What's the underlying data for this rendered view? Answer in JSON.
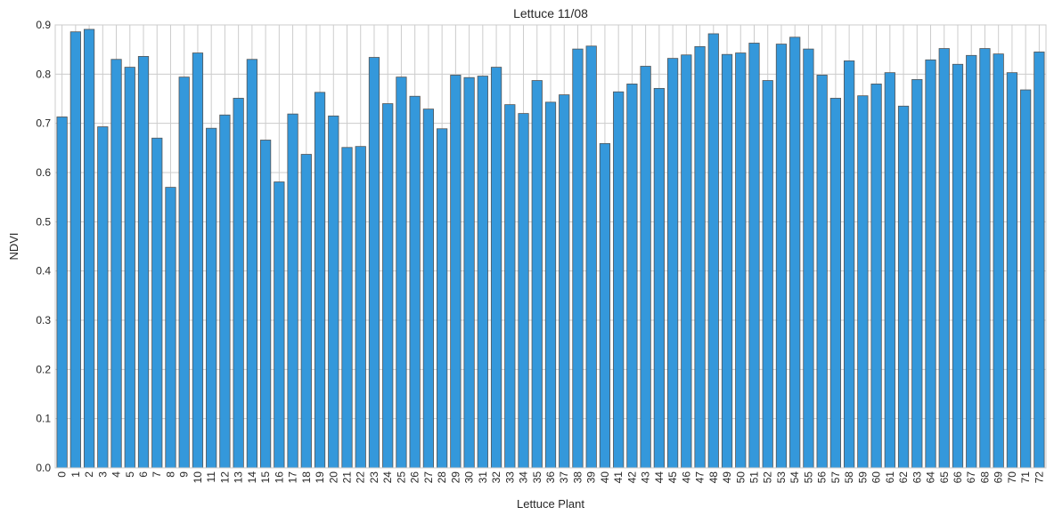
{
  "chart_data": {
    "type": "bar",
    "title": "Lettuce 11/08",
    "xlabel": "Lettuce Plant",
    "ylabel": "NDVI",
    "ylim": [
      0,
      0.9
    ],
    "yticks": [
      "0.0",
      "0.1",
      "0.2",
      "0.3",
      "0.4",
      "0.5",
      "0.6",
      "0.7",
      "0.8",
      "0.9"
    ],
    "grid": true,
    "bar_color": "#3498db",
    "bar_edge_color": "#555555",
    "grid_color": "#cccccc",
    "categories": [
      "0",
      "1",
      "2",
      "3",
      "4",
      "5",
      "6",
      "7",
      "8",
      "9",
      "10",
      "11",
      "12",
      "13",
      "14",
      "15",
      "16",
      "17",
      "18",
      "19",
      "20",
      "21",
      "22",
      "23",
      "24",
      "25",
      "26",
      "27",
      "28",
      "29",
      "30",
      "31",
      "32",
      "33",
      "34",
      "35",
      "36",
      "37",
      "38",
      "39",
      "40",
      "41",
      "42",
      "43",
      "44",
      "45",
      "46",
      "47",
      "48",
      "49",
      "50",
      "51",
      "52",
      "53",
      "54",
      "55",
      "56",
      "57",
      "58",
      "59",
      "60",
      "61",
      "62",
      "63",
      "64",
      "65",
      "66",
      "67",
      "68",
      "69",
      "70",
      "71",
      "72"
    ],
    "values": [
      0.713,
      0.886,
      0.891,
      0.693,
      0.83,
      0.814,
      0.836,
      0.67,
      0.57,
      0.794,
      0.843,
      0.69,
      0.717,
      0.751,
      0.83,
      0.666,
      0.581,
      0.719,
      0.637,
      0.763,
      0.715,
      0.651,
      0.653,
      0.834,
      0.74,
      0.794,
      0.755,
      0.729,
      0.689,
      0.798,
      0.793,
      0.796,
      0.814,
      0.738,
      0.72,
      0.787,
      0.743,
      0.758,
      0.851,
      0.857,
      0.659,
      0.764,
      0.78,
      0.816,
      0.771,
      0.832,
      0.839,
      0.856,
      0.882,
      0.84,
      0.843,
      0.863,
      0.787,
      0.861,
      0.875,
      0.851,
      0.798,
      0.751,
      0.827,
      0.756,
      0.78,
      0.803,
      0.735,
      0.789,
      0.829,
      0.852,
      0.82,
      0.838,
      0.852,
      0.841,
      0.803,
      0.768,
      0.845
    ]
  }
}
